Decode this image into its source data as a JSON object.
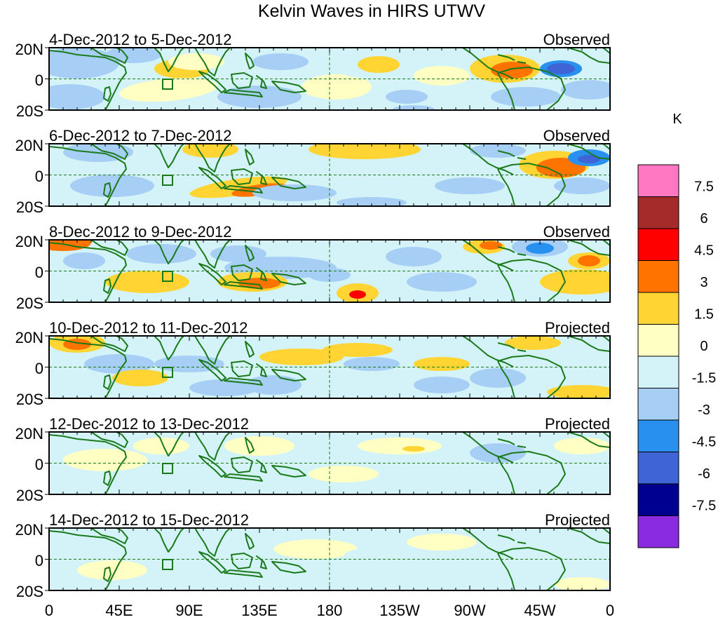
{
  "title": "Kelvin Waves in HIRS UTWV",
  "colorbar": {
    "unit": "K",
    "labels": [
      "7.5",
      "6",
      "4.5",
      "3",
      "1.5",
      "0",
      "-1.5",
      "-3",
      "-4.5",
      "-6",
      "-7.5"
    ],
    "colors": [
      "#ff77c0",
      "#a52a2a",
      "#ff0000",
      "#ff7400",
      "#ffd433",
      "#ffffc4",
      "#d3f3f8",
      "#a7cff6",
      "#2891f0",
      "#3e64d6",
      "#000090",
      "#8a2be2"
    ]
  },
  "y_ticks": [
    "20N",
    "0",
    "20S"
  ],
  "x_ticks": [
    "0",
    "45E",
    "90E",
    "135E",
    "180",
    "135W",
    "90W",
    "45W",
    "0"
  ],
  "panels": [
    {
      "date": "4-Dec-2012 to 5-Dec-2012",
      "status": "Observed"
    },
    {
      "date": "6-Dec-2012 to 7-Dec-2012",
      "status": "Observed"
    },
    {
      "date": "8-Dec-2012 to 9-Dec-2012",
      "status": "Observed"
    },
    {
      "date": "10-Dec-2012 to 11-Dec-2012",
      "status": "Projected"
    },
    {
      "date": "12-Dec-2012 to 13-Dec-2012",
      "status": "Projected"
    },
    {
      "date": "14-Dec-2012 to 15-Dec-2012",
      "status": "Projected"
    }
  ]
}
